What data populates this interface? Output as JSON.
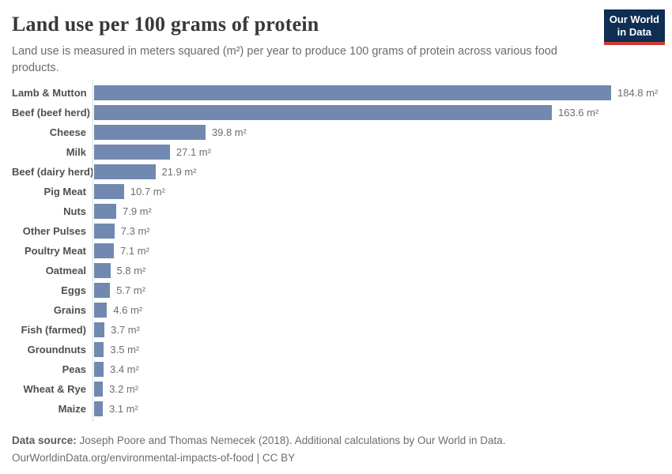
{
  "header": {
    "title": "Land use per 100 grams of protein",
    "subtitle": "Land use is measured in meters squared (m²) per year to produce 100 grams of protein across various food products.",
    "logo": {
      "line1": "Our World",
      "line2": "in Data"
    }
  },
  "chart_data": {
    "type": "bar",
    "orientation": "horizontal",
    "title": "Land use per 100 grams of protein",
    "xlabel": "",
    "ylabel": "",
    "unit": "m²",
    "categories": [
      "Lamb & Mutton",
      "Beef (beef herd)",
      "Cheese",
      "Milk",
      "Beef (dairy herd)",
      "Pig Meat",
      "Nuts",
      "Other Pulses",
      "Poultry Meat",
      "Oatmeal",
      "Eggs",
      "Grains",
      "Fish (farmed)",
      "Groundnuts",
      "Peas",
      "Wheat & Rye",
      "Maize"
    ],
    "values": [
      184.8,
      163.6,
      39.8,
      27.1,
      21.9,
      10.7,
      7.9,
      7.3,
      7.1,
      5.8,
      5.7,
      4.6,
      3.7,
      3.5,
      3.4,
      3.2,
      3.1
    ],
    "xlim": [
      0,
      184.8
    ],
    "grid": false,
    "legend": "none",
    "bar_color": "#7189b0"
  },
  "footer": {
    "source_label": "Data source:",
    "source_text": " Joseph Poore and Thomas Nemecek (2018). Additional calculations by Our World in Data.",
    "link_line": "OurWorldinData.org/environmental-impacts-of-food | CC BY"
  },
  "colors": {
    "bar": "#7189b0",
    "logo_background": "#0e2e52",
    "logo_underline": "#cf3a35",
    "axis_line": "#dcdcdc",
    "title_text": "#383838",
    "subtitle_text": "#6b6b6b"
  }
}
